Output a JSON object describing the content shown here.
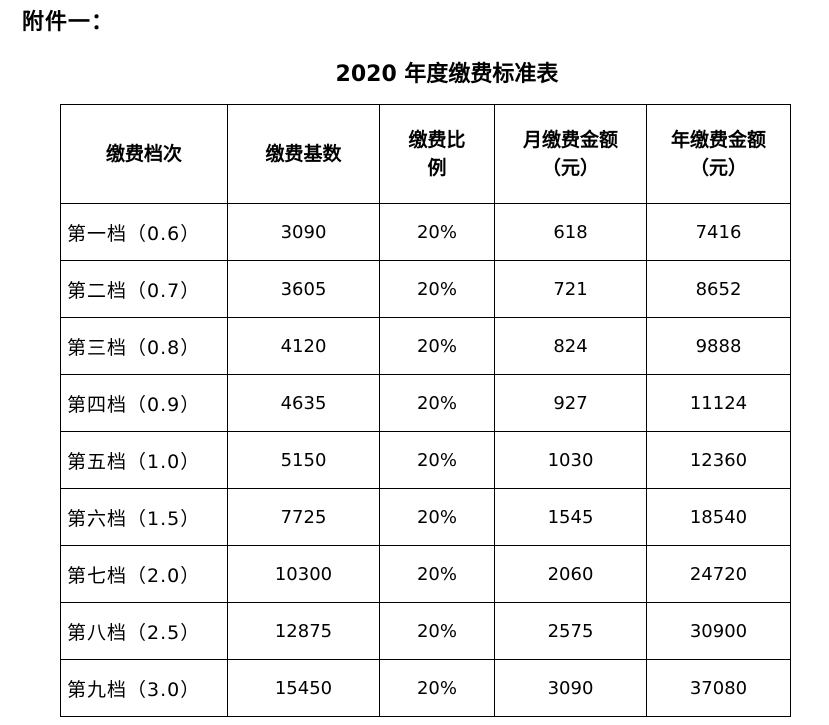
{
  "attachment_label": "附件一：",
  "title": "2020 年度缴费标准表",
  "table": {
    "headers": [
      "缴费档次",
      "缴费基数",
      "缴费比\n例",
      "月缴费金额\n（元）",
      "年缴费金额\n（元）"
    ],
    "rows": [
      [
        "第一档（0.6）",
        "3090",
        "20%",
        "618",
        "7416"
      ],
      [
        "第二档（0.7）",
        "3605",
        "20%",
        "721",
        "8652"
      ],
      [
        "第三档（0.8）",
        "4120",
        "20%",
        "824",
        "9888"
      ],
      [
        "第四档（0.9）",
        "4635",
        "20%",
        "927",
        "11124"
      ],
      [
        "第五档（1.0）",
        "5150",
        "20%",
        "1030",
        "12360"
      ],
      [
        "第六档（1.5）",
        "7725",
        "20%",
        "1545",
        "18540"
      ],
      [
        "第七档（2.0）",
        "10300",
        "20%",
        "2060",
        "24720"
      ],
      [
        "第八档（2.5）",
        "12875",
        "20%",
        "2575",
        "30900"
      ],
      [
        "第九档（3.0）",
        "15450",
        "20%",
        "3090",
        "37080"
      ]
    ]
  }
}
